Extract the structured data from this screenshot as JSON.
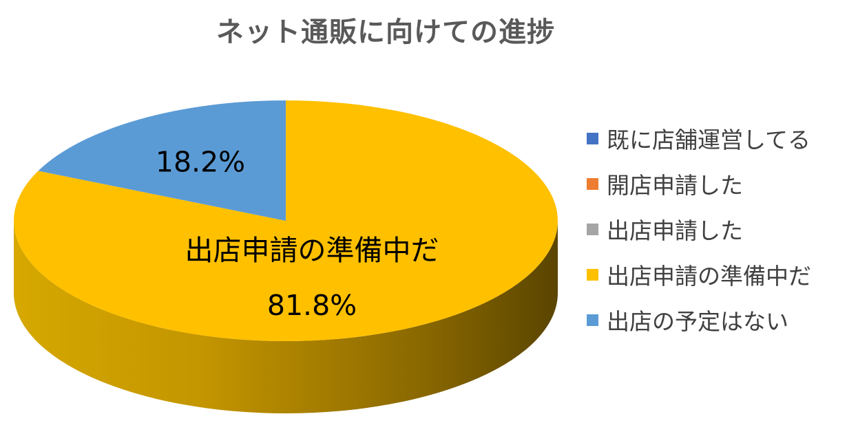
{
  "chart_data": {
    "type": "pie",
    "title": "ネット通販に向けての進捗",
    "categories": [
      "既に店舗運営してる",
      "開店申請した",
      "出店申請した",
      "出店申請の準備中だ",
      "出店の予定はない"
    ],
    "values": [
      0,
      0,
      0,
      81.8,
      18.2
    ],
    "data_labels": [
      "",
      "",
      "",
      "81.8%",
      "18.2%"
    ],
    "category_labels_on_chart": [
      "",
      "",
      "",
      "出店申請の準備中だ",
      ""
    ],
    "colors": [
      "#4472C4",
      "#ED7D31",
      "#A5A5A5",
      "#FFC000",
      "#5B9BD5"
    ],
    "style": "3d-pie",
    "legend_position": "right"
  }
}
